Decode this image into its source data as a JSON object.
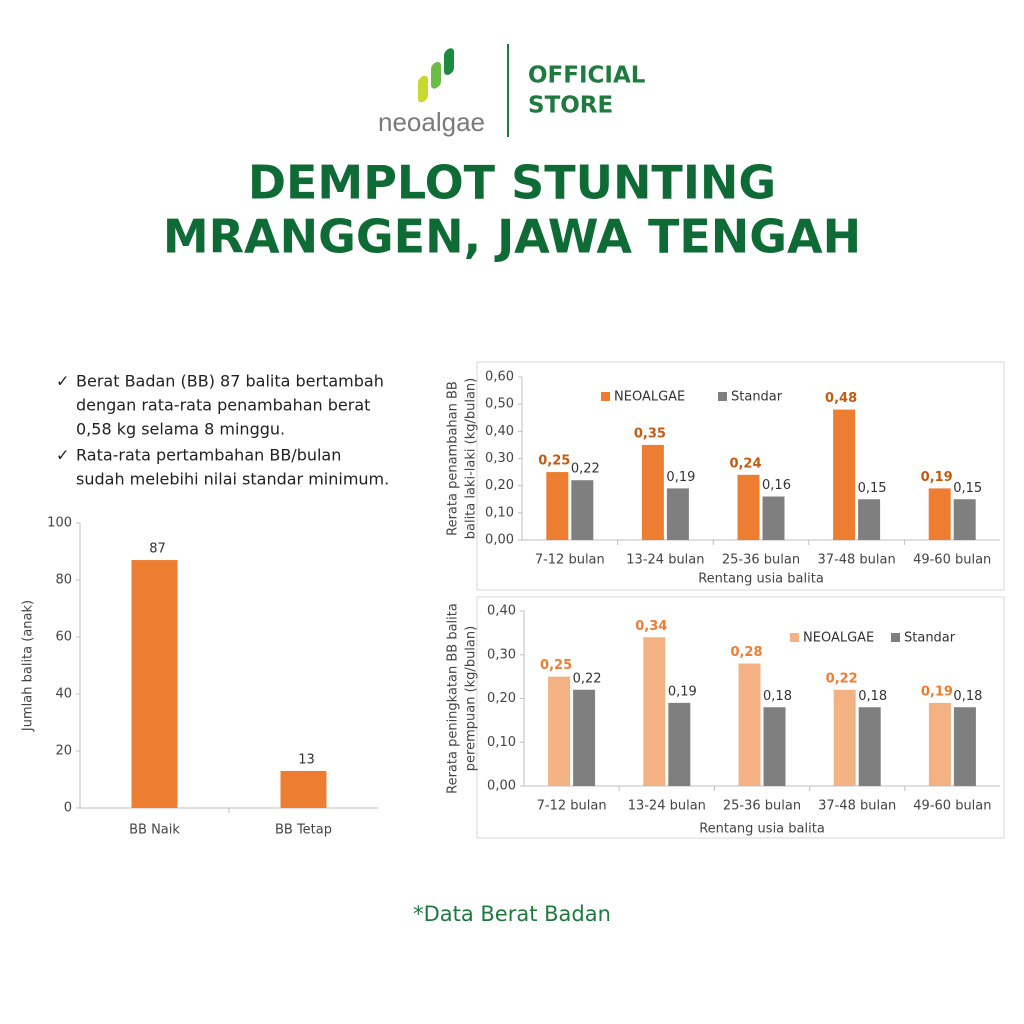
{
  "header": {
    "brand": "neoalgae",
    "badge": [
      "OFFICIAL",
      "STORE"
    ],
    "title": [
      "DEMPLOT STUNTING",
      "MRANGGEN, JAWA TENGAH"
    ]
  },
  "bullets": [
    [
      "Berat Badan (BB) 87 balita bertambah",
      "dengan rata-rata penambahan berat",
      "0,58 kg selama 8 minggu."
    ],
    [
      "Rata-rata pertambahan BB/bulan",
      "sudah melebihi nilai standar minimum."
    ]
  ],
  "chart_data": [
    {
      "type": "bar",
      "ylabel": "Jumlah balita (anak)",
      "categories": [
        "BB Naik",
        "BB Tetap"
      ],
      "values": [
        87,
        13
      ],
      "color": "#ed7d31",
      "ylim": [
        0,
        100
      ],
      "yticks": [
        0,
        20,
        40,
        60,
        80,
        100
      ]
    },
    {
      "type": "bar",
      "ylabel": [
        "Rerata penambahan BB",
        "balita laki-laki (kg/bulan)"
      ],
      "xlabel": "Rentang usia balita",
      "categories": [
        "7-12 bulan",
        "13-24 bulan",
        "25-36 bulan",
        "37-48 bulan",
        "49-60 bulan"
      ],
      "series": [
        {
          "name": "NEOALGAE",
          "color": "#ed7d31",
          "label_color": "#c55a11",
          "values": [
            0.25,
            0.35,
            0.24,
            0.48,
            0.19
          ],
          "value_labels": [
            "0,25",
            "0,35",
            "0,24",
            "0,48",
            "0,19"
          ]
        },
        {
          "name": "Standar",
          "color": "#7f7f7f",
          "label_color": "#333333",
          "values": [
            0.22,
            0.19,
            0.16,
            0.15,
            0.15
          ],
          "value_labels": [
            "0,22",
            "0,19",
            "0,16",
            "0,15",
            "0,15"
          ]
        }
      ],
      "ylim": [
        0,
        0.6
      ],
      "yticks": [
        {
          "value": 0,
          "label": "0,00"
        },
        {
          "value": 0.1,
          "label": "0,10"
        },
        {
          "value": 0.2,
          "label": "0,20"
        },
        {
          "value": 0.3,
          "label": "0,30"
        },
        {
          "value": 0.4,
          "label": "0,40"
        },
        {
          "value": 0.5,
          "label": "0,50"
        },
        {
          "value": 0.6,
          "label": "0,60"
        }
      ],
      "legend": "top"
    },
    {
      "type": "bar",
      "ylabel": [
        "Rerata peningkatan BB balita",
        "perempuan (kg/bulan)"
      ],
      "xlabel": "Rentang usia balita",
      "categories": [
        "7-12 bulan",
        "13-24 bulan",
        "25-36 bulan",
        "37-48 bulan",
        "49-60 bulan"
      ],
      "series": [
        {
          "name": "NEOALGAE",
          "color": "#f4b183",
          "label_color": "#ed7d31",
          "values": [
            0.25,
            0.34,
            0.28,
            0.22,
            0.19
          ],
          "value_labels": [
            "0,25",
            "0,34",
            "0,28",
            "0,22",
            "0,19"
          ]
        },
        {
          "name": "Standar",
          "color": "#7f7f7f",
          "label_color": "#333333",
          "values": [
            0.22,
            0.19,
            0.18,
            0.18,
            0.18
          ],
          "value_labels": [
            "0,22",
            "0,19",
            "0,18",
            "0,18",
            "0,18"
          ]
        }
      ],
      "ylim": [
        0,
        0.4
      ],
      "yticks": [
        {
          "value": 0,
          "label": "0,00"
        },
        {
          "value": 0.1,
          "label": "0,10"
        },
        {
          "value": 0.2,
          "label": "0,20"
        },
        {
          "value": 0.3,
          "label": "0,30"
        },
        {
          "value": 0.4,
          "label": "0,40"
        }
      ],
      "legend": "top-right"
    }
  ],
  "footnote": "*Data Berat Badan"
}
